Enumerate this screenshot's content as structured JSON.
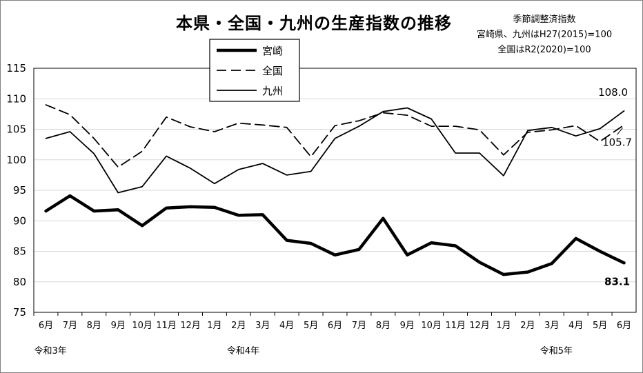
{
  "chart_data": {
    "type": "line",
    "title": "本県・全国・九州の生産指数の推移",
    "note_lines": [
      "季節調整済指数",
      "宮崎県、九州はH27(2015)=100",
      "全国はR2(2020)=100"
    ],
    "categories": [
      "6月",
      "7月",
      "8月",
      "9月",
      "10月",
      "11月",
      "12月",
      "1月",
      "2月",
      "3月",
      "4月",
      "5月",
      "6月",
      "7月",
      "8月",
      "9月",
      "10月",
      "11月",
      "12月",
      "1月",
      "2月",
      "3月",
      "4月",
      "5月",
      "6月"
    ],
    "year_labels": [
      {
        "index": 0,
        "label": "令和3年"
      },
      {
        "index": 8,
        "label": "令和4年"
      },
      {
        "index": 21,
        "label": "令和5年"
      }
    ],
    "ylim": [
      75,
      115
    ],
    "yticks": [
      75,
      80,
      85,
      90,
      95,
      100,
      105,
      110,
      115
    ],
    "grid": true,
    "legend_position": "top-left",
    "series": [
      {
        "name": "宮崎",
        "style": "thick",
        "values": [
          91.6,
          94.1,
          91.6,
          91.8,
          89.2,
          92.1,
          92.3,
          92.2,
          90.9,
          91.0,
          86.8,
          86.3,
          84.4,
          85.3,
          90.4,
          84.4,
          86.4,
          85.9,
          83.2,
          81.2,
          81.6,
          83.0,
          87.1,
          85.0,
          83.1
        ]
      },
      {
        "name": "全国",
        "style": "dashed",
        "values": [
          109.0,
          107.4,
          103.5,
          98.8,
          101.4,
          107.0,
          105.4,
          104.6,
          106.0,
          105.7,
          105.3,
          100.5,
          105.6,
          106.4,
          107.7,
          107.3,
          105.5,
          105.5,
          104.9,
          100.8,
          104.5,
          104.9,
          105.6,
          103.0,
          105.7
        ]
      },
      {
        "name": "九州",
        "style": "solid",
        "values": [
          103.5,
          104.6,
          101.0,
          94.6,
          95.6,
          100.6,
          98.6,
          96.1,
          98.4,
          99.4,
          97.5,
          98.1,
          103.5,
          105.5,
          107.9,
          108.5,
          106.7,
          101.1,
          101.1,
          97.4,
          104.8,
          105.3,
          103.9,
          105.1,
          108.0
        ]
      }
    ],
    "annotations": [
      {
        "series": "九州",
        "index": 24,
        "text": "108.0"
      },
      {
        "series": "全国",
        "index": 24,
        "text": "105.7"
      },
      {
        "series": "宮崎",
        "index": 24,
        "text": "83.1"
      }
    ]
  }
}
